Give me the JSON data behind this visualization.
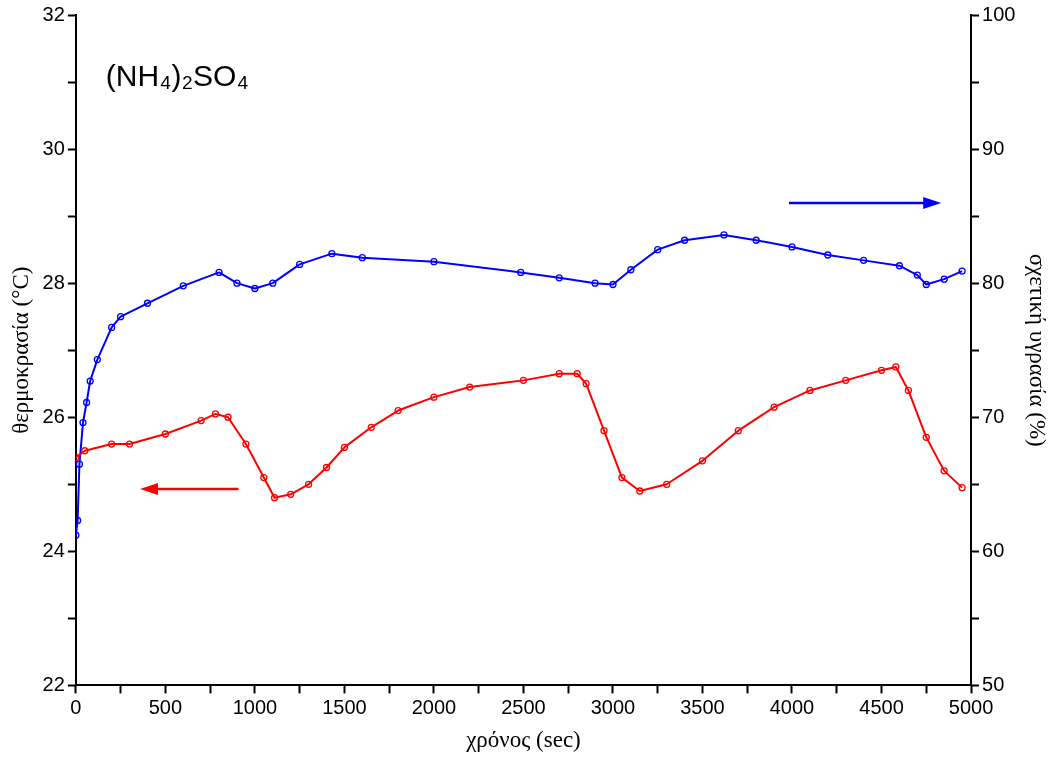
{
  "chart_data": {
    "type": "line",
    "xlabel": "χρόνος (sec)",
    "ylabel": "θερμοκρασία (°C)",
    "y2label": "σχετική υγρασία (%)",
    "annotations": [
      "(NH₄)₂SO₄"
    ],
    "xlim": [
      0,
      5000
    ],
    "xticks": [
      0,
      {
        "value": 250,
        "label": null
      },
      500,
      {
        "value": 750,
        "label": null
      },
      1000,
      {
        "value": 1250,
        "label": null
      },
      1500,
      {
        "value": 1750,
        "label": null
      },
      2000,
      {
        "value": 2250,
        "label": null
      },
      2500,
      {
        "value": 2750,
        "label": null
      },
      3000,
      {
        "value": 3250,
        "label": null
      },
      3500,
      {
        "value": 3750,
        "label": null
      },
      4000,
      {
        "value": 4250,
        "label": null
      },
      4500,
      {
        "value": 4750,
        "label": null
      },
      5000
    ],
    "ylim": [
      22,
      32
    ],
    "yticks": [
      22,
      {
        "value": 23,
        "label": null
      },
      24,
      {
        "value": 25,
        "label": null
      },
      26,
      {
        "value": 27,
        "label": null
      },
      28,
      {
        "value": 29,
        "label": null
      },
      30,
      {
        "value": 31,
        "label": null
      },
      32
    ],
    "y2lim": [
      50,
      100
    ],
    "y2ticks": [
      50,
      {
        "value": 55,
        "label": null
      },
      60,
      {
        "value": 65,
        "label": null
      },
      70,
      {
        "value": 75,
        "label": null
      },
      80,
      {
        "value": 85,
        "label": null
      },
      90,
      {
        "value": 95,
        "label": null
      },
      100
    ],
    "grid": false,
    "legend": false,
    "marker": "circle",
    "line_style": "solid",
    "series": [
      {
        "color": "#ff0000",
        "x": [
          0,
          50,
          200,
          300,
          500,
          700,
          780,
          850,
          950,
          1050,
          1110,
          1200,
          1300,
          1400,
          1500,
          1650,
          1800,
          2000,
          2200,
          2500,
          2700,
          2800,
          2850,
          2950,
          3050,
          3150,
          3300,
          3500,
          3700,
          3900,
          4100,
          4300,
          4500,
          4580,
          4650,
          4750,
          4850,
          4950
        ],
        "values": [
          25.4,
          25.5,
          25.6,
          25.6,
          25.75,
          25.95,
          26.05,
          26.0,
          25.6,
          25.1,
          24.8,
          24.85,
          25.0,
          25.25,
          25.55,
          25.85,
          26.1,
          26.3,
          26.45,
          26.55,
          26.65,
          26.65,
          26.5,
          25.8,
          25.1,
          24.9,
          25.0,
          25.35,
          25.8,
          26.15,
          26.4,
          26.55,
          26.7,
          26.75,
          26.4,
          25.7,
          25.2,
          24.95
        ]
      },
      {
        "color": "#0000ff",
        "axis": "y2",
        "x": [
          0,
          10,
          20,
          40,
          60,
          80,
          120,
          200,
          250,
          400,
          600,
          800,
          900,
          1000,
          1100,
          1250,
          1430,
          1600,
          2000,
          2485,
          2700,
          2900,
          3000,
          3100,
          3250,
          3400,
          3620,
          3800,
          4000,
          4200,
          4400,
          4600,
          4700,
          4750,
          4850,
          4950
        ],
        "values": [
          61.2,
          62.3,
          66.5,
          69.6,
          71.1,
          72.7,
          74.3,
          76.7,
          77.5,
          78.5,
          79.8,
          80.8,
          80.0,
          79.6,
          80.0,
          81.4,
          82.2,
          81.9,
          81.6,
          80.8,
          80.4,
          80.0,
          79.9,
          81.0,
          82.5,
          83.2,
          83.6,
          83.2,
          82.7,
          82.1,
          81.7,
          81.3,
          80.6,
          79.9,
          80.3,
          80.9
        ]
      }
    ]
  }
}
